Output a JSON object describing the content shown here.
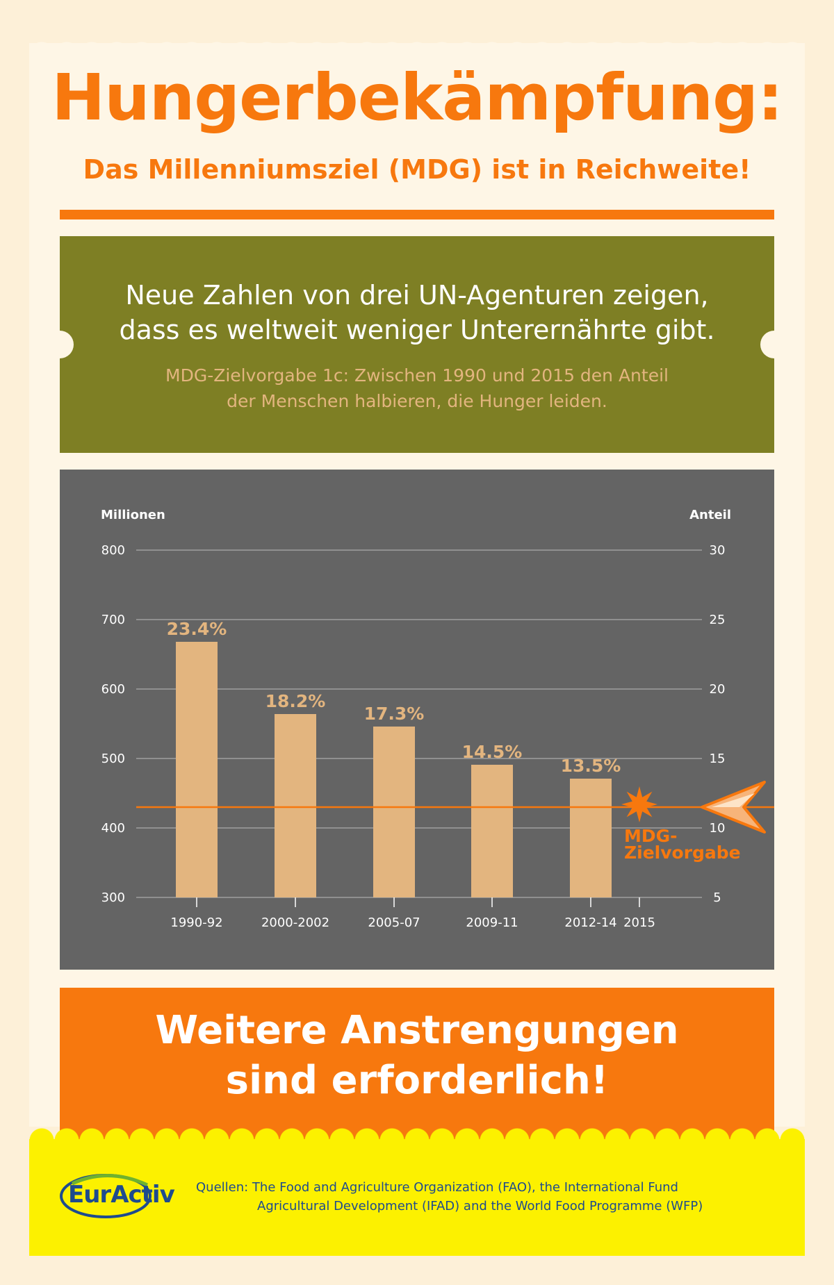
{
  "header": {
    "title": "Hungerbekämpfung:",
    "subtitle": "Das Millenniumsziel (MDG) ist in Reichweite!"
  },
  "intro": {
    "headline_line1": "Neue Zahlen von drei UN-Agenturen zeigen,",
    "headline_line2": "dass es weltweit weniger Unterernährte gibt.",
    "note_line1": "MDG-Zielvorgabe 1c: Zwischen 1990 und 2015 den Anteil",
    "note_line2": "der Menschen halbieren, die Hunger leiden."
  },
  "chart_data": {
    "type": "bar",
    "categories": [
      "1990-92",
      "2000-2002",
      "2005-07",
      "2009-11",
      "2012-14",
      "2015"
    ],
    "values": [
      668,
      564,
      546,
      491,
      471,
      null
    ],
    "bar_labels": [
      "23.4%",
      "18.2%",
      "17.3%",
      "14.5%",
      "13.5%",
      ""
    ],
    "ylabel": "Millionen",
    "y2label": "Anteil",
    "ylim": [
      300,
      800
    ],
    "y2lim": [
      5,
      30
    ],
    "yticks": [
      "300",
      "400",
      "500",
      "600",
      "700",
      "800"
    ],
    "y2ticks": [
      "5",
      "10",
      "15",
      "20",
      "25",
      "30"
    ],
    "grid": true,
    "target_line": {
      "value": 430,
      "label_line1": "MDG-",
      "label_line2": "Zielvorgabe",
      "category": "2015"
    },
    "colors": {
      "bar": "#e3b57f",
      "label": "#e3b57f",
      "target": "#f7780e",
      "grid": "#bdbdbd",
      "background": "#646464"
    }
  },
  "callout": {
    "line1": "Weitere Anstrengungen",
    "line2": "sind erforderlich!"
  },
  "footer": {
    "logo_text": "EurActiv",
    "sources_line1": "Quellen: The Food and Agriculture Organization (FAO), the International Fund",
    "sources_line2": "Agricultural Development (IFAD) and the World Food Programme (WFP)"
  }
}
